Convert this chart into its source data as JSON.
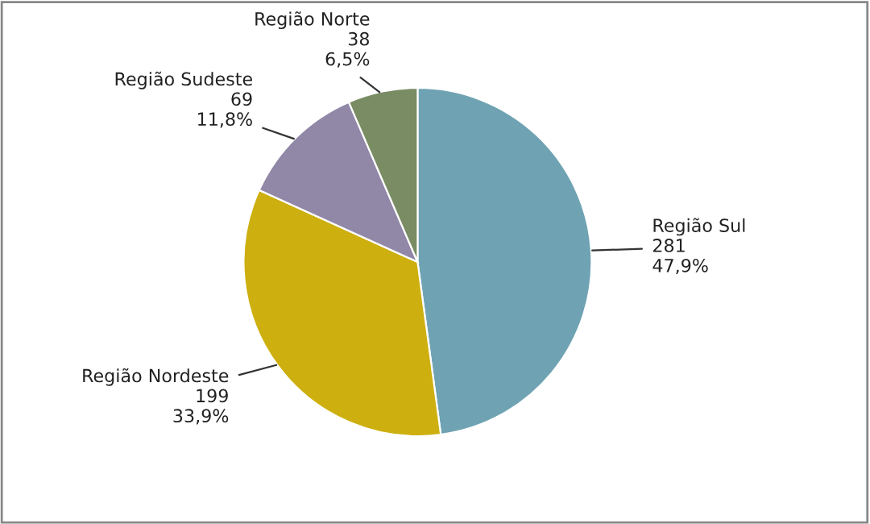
{
  "chart_data": {
    "type": "pie",
    "categories": [
      "Região Sul",
      "Região Nordeste",
      "Região Sudeste",
      "Região Norte"
    ],
    "values": [
      281,
      199,
      69,
      38
    ],
    "value_labels": [
      "281\n47,9%",
      "199\n33,9%",
      "69\n11,8%",
      "38\n6,5%"
    ],
    "colors": [
      "#6fa3b3",
      "#cdaf0f",
      "#9188a8",
      "#798c63"
    ],
    "legend": false
  }
}
